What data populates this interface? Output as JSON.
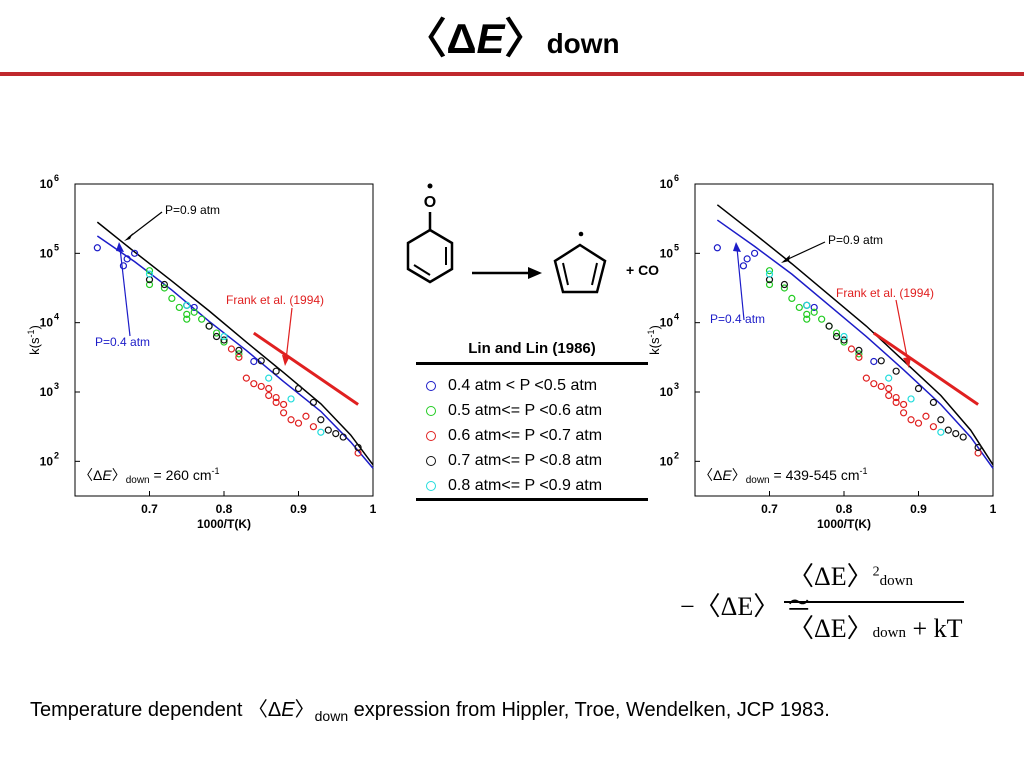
{
  "slide": {
    "title_prefix": "〈Δ",
    "title_italic": "E",
    "title_suffix": "〉",
    "title_sub": "down",
    "caption_prefix": "Temperature dependent 〈Δ",
    "caption_italic": "E",
    "caption_bracket": "〉",
    "caption_sub": "down",
    "caption_rest": " expression from Hippler, Troe, Wendelken, JCP 1983."
  },
  "colors": {
    "accent_rule": "#c0282d",
    "series_04": "#1c1cc8",
    "series_05": "#22cc22",
    "series_06": "#e02020",
    "series_07": "#111111",
    "series_08": "#22dddd",
    "frank": "#e02020",
    "p09_line": "#000000",
    "p04_line": "#1c1cc8"
  },
  "reaction": {
    "radical_label": "O",
    "product_label": "+ CO"
  },
  "legend": {
    "title": "Lin and Lin (1986)",
    "items": [
      {
        "label": "0.4 atm < P <0.5 atm",
        "color": "#1c1cc8"
      },
      {
        "label": "0.5 atm<= P <0.6 atm",
        "color": "#22cc22"
      },
      {
        "label": "0.6 atm<= P <0.7 atm",
        "color": "#e02020"
      },
      {
        "label": "0.7 atm<= P <0.8 atm",
        "color": "#111111"
      },
      {
        "label": "0.8 atm<= P <0.9 atm",
        "color": "#22dddd"
      }
    ]
  },
  "equation": {
    "minus": "−",
    "lhs": "〈ΔE〉 ≃",
    "num": "〈ΔE〉",
    "num_sup": "2",
    "num_sub": "down",
    "den": "〈ΔE〉",
    "den_sub": "down",
    "den_rest": " + kT"
  },
  "chart_data": [
    {
      "type": "scatter",
      "xlabel": "1000/T(K)",
      "ylabel_base": "k(s",
      "ylabel_sup": "-1",
      "ylabel_end": ")",
      "xlim": [
        0.6,
        1.0
      ],
      "ylim": [
        1.5,
        6.0
      ],
      "log_y": true,
      "xticks": [
        "0.7",
        "0.8",
        "0.9",
        "1"
      ],
      "xtick_values": [
        0.7,
        0.8,
        0.9,
        1.0
      ],
      "yticks": [
        {
          "base": "10",
          "exp": "2",
          "v": 2
        },
        {
          "base": "10",
          "exp": "3",
          "v": 3
        },
        {
          "base": "10",
          "exp": "4",
          "v": 4
        },
        {
          "base": "10",
          "exp": "5",
          "v": 5
        },
        {
          "base": "10",
          "exp": "6",
          "v": 6
        }
      ],
      "annotations": {
        "p09": "P=0.9 atm",
        "p04": "P=0.4 atm",
        "frank": "Frank et al. (1994)",
        "de_prefix": "〈Δ",
        "de_italic": "E",
        "de_bracket": "〉",
        "de_sub": "down",
        "de_value": " = 260 cm",
        "de_sup": "-1"
      },
      "lines": [
        {
          "name": "P=0.9 atm",
          "color": "#000000",
          "x": [
            0.63,
            0.68,
            0.73,
            0.78,
            0.83,
            0.88,
            0.93,
            0.97,
            1.0
          ],
          "y": [
            5.45,
            5.02,
            4.6,
            4.17,
            3.72,
            3.28,
            2.83,
            2.38,
            1.95
          ]
        },
        {
          "name": "P=0.4 atm",
          "color": "#1c1cc8",
          "x": [
            0.63,
            0.68,
            0.73,
            0.78,
            0.83,
            0.88,
            0.93,
            0.97,
            1.0
          ],
          "y": [
            5.25,
            4.88,
            4.47,
            4.02,
            3.6,
            3.15,
            2.72,
            2.28,
            1.9
          ]
        },
        {
          "name": "Frank et al. (1994)",
          "color": "#e02020",
          "width": 3,
          "x": [
            0.84,
            0.98
          ],
          "y": [
            3.85,
            2.82
          ]
        }
      ],
      "series": [
        {
          "name": "0.4 atm < P <0.5 atm",
          "color": "#1c1cc8",
          "x": [
            0.63,
            0.665,
            0.67,
            0.68,
            0.76,
            0.84
          ],
          "y": [
            5.08,
            4.82,
            4.92,
            5.0,
            4.22,
            3.44
          ]
        },
        {
          "name": "0.5 atm<= P <0.6 atm",
          "color": "#22cc22",
          "x": [
            0.7,
            0.7,
            0.72,
            0.73,
            0.74,
            0.75,
            0.75,
            0.76,
            0.77,
            0.78,
            0.79,
            0.8,
            0.82
          ],
          "y": [
            4.75,
            4.55,
            4.5,
            4.35,
            4.22,
            4.12,
            4.05,
            4.15,
            4.05,
            3.95,
            3.85,
            3.72,
            3.55
          ]
        },
        {
          "name": "0.6 atm<= P <0.7 atm",
          "color": "#e02020",
          "x": [
            0.81,
            0.82,
            0.83,
            0.84,
            0.85,
            0.86,
            0.86,
            0.87,
            0.87,
            0.88,
            0.88,
            0.89,
            0.9,
            0.91,
            0.92,
            0.98
          ],
          "y": [
            3.62,
            3.5,
            3.2,
            3.12,
            3.08,
            3.05,
            2.95,
            2.92,
            2.85,
            2.82,
            2.7,
            2.6,
            2.55,
            2.65,
            2.5,
            2.12
          ]
        },
        {
          "name": "0.7 atm<= P <0.8 atm",
          "color": "#111111",
          "x": [
            0.7,
            0.72,
            0.75,
            0.78,
            0.79,
            0.8,
            0.82,
            0.85,
            0.87,
            0.9,
            0.92,
            0.93,
            0.94,
            0.95,
            0.96,
            0.98
          ],
          "y": [
            4.62,
            4.55,
            4.25,
            3.95,
            3.8,
            3.75,
            3.6,
            3.45,
            3.3,
            3.05,
            2.85,
            2.6,
            2.45,
            2.4,
            2.35,
            2.2
          ]
        },
        {
          "name": "0.8 atm<= P <0.9 atm",
          "color": "#22dddd",
          "x": [
            0.7,
            0.75,
            0.8,
            0.86,
            0.89,
            0.93
          ],
          "y": [
            4.7,
            4.25,
            3.8,
            3.2,
            2.9,
            2.42
          ]
        }
      ]
    },
    {
      "type": "scatter",
      "xlabel": "1000/T(K)",
      "ylabel_base": "k(s",
      "ylabel_sup": "-1",
      "ylabel_end": ")",
      "xlim": [
        0.6,
        1.0
      ],
      "ylim": [
        1.5,
        6.0
      ],
      "log_y": true,
      "xticks": [
        "0.7",
        "0.8",
        "0.9",
        "1"
      ],
      "xtick_values": [
        0.7,
        0.8,
        0.9,
        1.0
      ],
      "yticks": [
        {
          "base": "10",
          "exp": "2",
          "v": 2
        },
        {
          "base": "10",
          "exp": "3",
          "v": 3
        },
        {
          "base": "10",
          "exp": "4",
          "v": 4
        },
        {
          "base": "10",
          "exp": "5",
          "v": 5
        },
        {
          "base": "10",
          "exp": "6",
          "v": 6
        }
      ],
      "annotations": {
        "p09": "P=0.9 atm",
        "p04": "P=0.4 atm",
        "frank": "Frank et al. (1994)",
        "de_prefix": "〈Δ",
        "de_italic": "E",
        "de_bracket": "〉",
        "de_sub": "down",
        "de_value": " = 439-545 cm",
        "de_sup": "-1"
      },
      "lines": [
        {
          "name": "P=0.9 atm",
          "color": "#000000",
          "x": [
            0.63,
            0.68,
            0.73,
            0.78,
            0.83,
            0.88,
            0.93,
            0.97,
            1.0
          ],
          "y": [
            5.7,
            5.28,
            4.85,
            4.4,
            3.95,
            3.45,
            2.95,
            2.45,
            1.95
          ]
        },
        {
          "name": "P=0.4 atm",
          "color": "#1c1cc8",
          "x": [
            0.63,
            0.68,
            0.73,
            0.78,
            0.83,
            0.88,
            0.93,
            0.97,
            1.0
          ],
          "y": [
            5.48,
            5.1,
            4.7,
            4.25,
            3.8,
            3.32,
            2.82,
            2.35,
            1.9
          ]
        },
        {
          "name": "Frank et al. (1994)",
          "color": "#e02020",
          "width": 3,
          "x": [
            0.84,
            0.98
          ],
          "y": [
            3.85,
            2.82
          ]
        }
      ],
      "series": [
        {
          "name": "0.4 atm < P <0.5 atm",
          "color": "#1c1cc8",
          "x": [
            0.63,
            0.665,
            0.67,
            0.68,
            0.76,
            0.84
          ],
          "y": [
            5.08,
            4.82,
            4.92,
            5.0,
            4.22,
            3.44
          ]
        },
        {
          "name": "0.5 atm<= P <0.6 atm",
          "color": "#22cc22",
          "x": [
            0.7,
            0.7,
            0.72,
            0.73,
            0.74,
            0.75,
            0.75,
            0.76,
            0.77,
            0.78,
            0.79,
            0.8,
            0.82
          ],
          "y": [
            4.75,
            4.55,
            4.5,
            4.35,
            4.22,
            4.12,
            4.05,
            4.15,
            4.05,
            3.95,
            3.85,
            3.72,
            3.55
          ]
        },
        {
          "name": "0.6 atm<= P <0.7 atm",
          "color": "#e02020",
          "x": [
            0.81,
            0.82,
            0.83,
            0.84,
            0.85,
            0.86,
            0.86,
            0.87,
            0.87,
            0.88,
            0.88,
            0.89,
            0.9,
            0.91,
            0.92,
            0.98
          ],
          "y": [
            3.62,
            3.5,
            3.2,
            3.12,
            3.08,
            3.05,
            2.95,
            2.92,
            2.85,
            2.82,
            2.7,
            2.6,
            2.55,
            2.65,
            2.5,
            2.12
          ]
        },
        {
          "name": "0.7 atm<= P <0.8 atm",
          "color": "#111111",
          "x": [
            0.7,
            0.72,
            0.75,
            0.78,
            0.79,
            0.8,
            0.82,
            0.85,
            0.87,
            0.9,
            0.92,
            0.93,
            0.94,
            0.95,
            0.96,
            0.98
          ],
          "y": [
            4.62,
            4.55,
            4.25,
            3.95,
            3.8,
            3.75,
            3.6,
            3.45,
            3.3,
            3.05,
            2.85,
            2.6,
            2.45,
            2.4,
            2.35,
            2.2
          ]
        },
        {
          "name": "0.8 atm<= P <0.9 atm",
          "color": "#22dddd",
          "x": [
            0.7,
            0.75,
            0.8,
            0.86,
            0.89,
            0.93
          ],
          "y": [
            4.7,
            4.25,
            3.8,
            3.2,
            2.9,
            2.42
          ]
        }
      ]
    }
  ]
}
